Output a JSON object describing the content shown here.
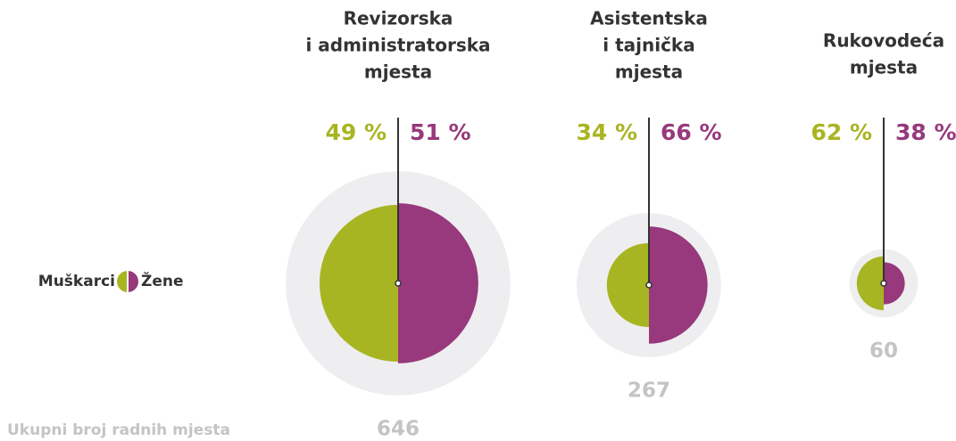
{
  "chart_data": {
    "type": "split_bubble",
    "categories": [
      [
        "Revizorska",
        "i administratorska",
        "mjesta"
      ],
      [
        "Asistentska",
        "i tajnička",
        "mjesta"
      ],
      [
        "Rukovodeća",
        "mjesta"
      ]
    ],
    "series": [
      {
        "name": "Muškarci",
        "color": "#a8b522",
        "values": [
          49,
          34,
          62
        ],
        "value_labels": [
          "49 %",
          "34 %",
          "62 %"
        ]
      },
      {
        "name": "Žene",
        "color": "#97397c",
        "values": [
          51,
          66,
          38
        ],
        "value_labels": [
          "51 %",
          "66 %",
          "38 %"
        ]
      }
    ],
    "totals": [
      646,
      267,
      60
    ],
    "totals_label": "Ukupni broj radnih mjesta"
  }
}
